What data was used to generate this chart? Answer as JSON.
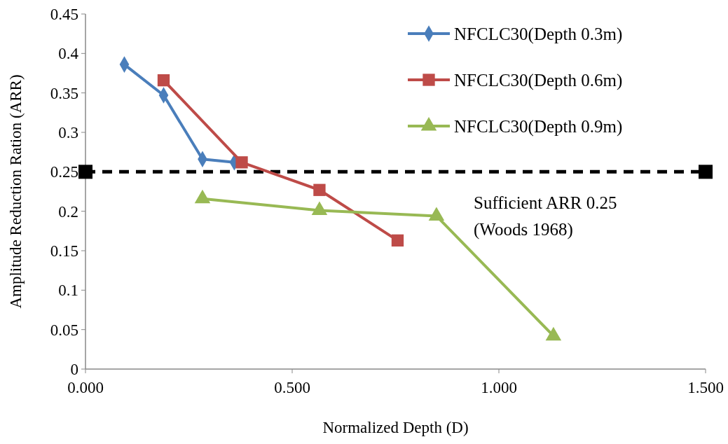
{
  "chart_data": {
    "type": "line",
    "xlabel": "Normalized Depth (D)",
    "ylabel": "Amplitude Reduction Ration (ARR)",
    "xlim": [
      0,
      1.5
    ],
    "xticks": [
      {
        "value": 0,
        "label": "0.000"
      },
      {
        "value": 0.5,
        "label": "0.500"
      },
      {
        "value": 1,
        "label": "1.000"
      },
      {
        "value": 1.5,
        "label": "1.500"
      }
    ],
    "ylim": [
      0,
      0.45
    ],
    "yticks": [
      0,
      0.05,
      0.1,
      0.15,
      0.2,
      0.25,
      0.3,
      0.35,
      0.4,
      0.45
    ],
    "grid": false,
    "legend": "top right",
    "series": [
      {
        "name": "NFCLC30(Depth 0.3m)",
        "color": "#4a7ebb",
        "marker": "diamond",
        "x": [
          0.094,
          0.189,
          0.283,
          0.36
        ],
        "values": [
          0.386,
          0.347,
          0.266,
          0.262
        ]
      },
      {
        "name": "NFCLC30(Depth 0.6m)",
        "color": "#be4b48",
        "marker": "square",
        "x": [
          0.189,
          0.378,
          0.566,
          0.755
        ],
        "values": [
          0.366,
          0.262,
          0.227,
          0.163
        ]
      },
      {
        "name": "NFCLC30(Depth 0.9m)",
        "color": "#98b954",
        "marker": "triangle",
        "x": [
          0.283,
          0.566,
          0.849,
          1.132
        ],
        "values": [
          0.216,
          0.201,
          0.194,
          0.042
        ]
      }
    ],
    "ref_lines": [
      {
        "axis": "y",
        "value": 0.25,
        "color": "#000000",
        "line_style": "dashed"
      }
    ],
    "annotations": [
      "Sufficient ARR 0.25\n(Woods 1968)"
    ]
  }
}
